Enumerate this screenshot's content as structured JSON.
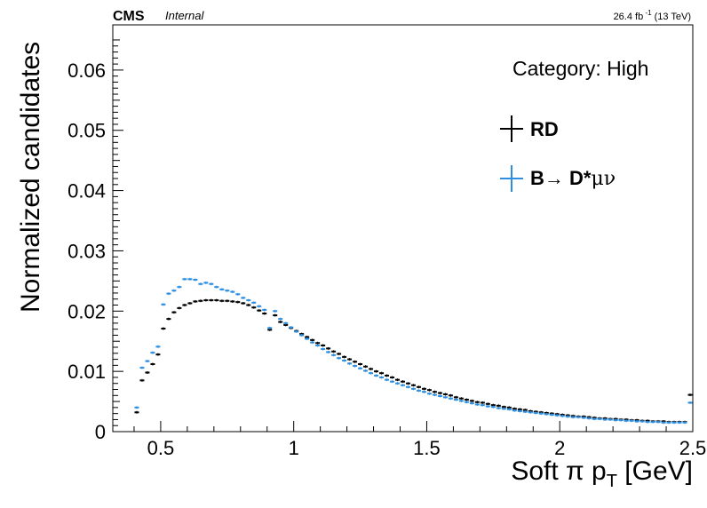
{
  "header": {
    "experiment": "CMS",
    "status": "Internal",
    "lumi": "26.4 fb",
    "lumi_exp": "-1",
    "energy": "(13 TeV)"
  },
  "chart_data": {
    "type": "scatter",
    "xlabel_main": "Soft π p",
    "xlabel_sub": "T",
    "xlabel_unit": "[GeV]",
    "ylabel": "Normalized candidates",
    "xlim": [
      0.32,
      2.5
    ],
    "ylim": [
      0,
      0.0675
    ],
    "x_ticks": [
      "0.5",
      "1",
      "1.5",
      "2",
      "2.5"
    ],
    "y_ticks": [
      "0",
      "0.01",
      "0.02",
      "0.03",
      "0.04",
      "0.05",
      "0.06"
    ],
    "annotation": "Category: High",
    "legend_position": "top-right",
    "bin_width": 0.02,
    "series": [
      {
        "name": "RD",
        "legend_label": "RD",
        "color": "#000000",
        "bins": [
          [
            0.41,
            0.0032
          ],
          [
            0.43,
            0.0085
          ],
          [
            0.45,
            0.0098
          ],
          [
            0.47,
            0.0112
          ],
          [
            0.49,
            0.0128
          ],
          [
            0.51,
            0.0171
          ],
          [
            0.53,
            0.0187
          ],
          [
            0.55,
            0.0198
          ],
          [
            0.57,
            0.0205
          ],
          [
            0.59,
            0.021
          ],
          [
            0.61,
            0.0213
          ],
          [
            0.63,
            0.0216
          ],
          [
            0.65,
            0.0217
          ],
          [
            0.67,
            0.0218
          ],
          [
            0.69,
            0.0218
          ],
          [
            0.71,
            0.0218
          ],
          [
            0.73,
            0.0217
          ],
          [
            0.75,
            0.0217
          ],
          [
            0.77,
            0.0216
          ],
          [
            0.79,
            0.0215
          ],
          [
            0.81,
            0.0213
          ],
          [
            0.83,
            0.021
          ],
          [
            0.85,
            0.0206
          ],
          [
            0.87,
            0.0201
          ],
          [
            0.89,
            0.0196
          ],
          [
            0.91,
            0.0169
          ],
          [
            0.93,
            0.0193
          ],
          [
            0.95,
            0.0182
          ],
          [
            0.97,
            0.0177
          ],
          [
            0.99,
            0.0172
          ],
          [
            1.01,
            0.0167
          ],
          [
            1.03,
            0.0162
          ],
          [
            1.05,
            0.0157
          ],
          [
            1.07,
            0.0152
          ],
          [
            1.09,
            0.0147
          ],
          [
            1.11,
            0.0143
          ],
          [
            1.13,
            0.0138
          ],
          [
            1.15,
            0.0133
          ],
          [
            1.17,
            0.0129
          ],
          [
            1.19,
            0.0124
          ],
          [
            1.21,
            0.012
          ],
          [
            1.23,
            0.0116
          ],
          [
            1.25,
            0.0112
          ],
          [
            1.27,
            0.0108
          ],
          [
            1.29,
            0.0104
          ],
          [
            1.31,
            0.01
          ],
          [
            1.33,
            0.0097
          ],
          [
            1.35,
            0.0093
          ],
          [
            1.37,
            0.009
          ],
          [
            1.39,
            0.0086
          ],
          [
            1.41,
            0.0083
          ],
          [
            1.43,
            0.008
          ],
          [
            1.45,
            0.0077
          ],
          [
            1.47,
            0.0074
          ],
          [
            1.49,
            0.0071
          ],
          [
            1.51,
            0.0069
          ],
          [
            1.53,
            0.0066
          ],
          [
            1.55,
            0.0064
          ],
          [
            1.57,
            0.0062
          ],
          [
            1.59,
            0.006
          ],
          [
            1.61,
            0.0057
          ],
          [
            1.63,
            0.0055
          ],
          [
            1.65,
            0.0053
          ],
          [
            1.67,
            0.0051
          ],
          [
            1.69,
            0.0049
          ],
          [
            1.71,
            0.0048
          ],
          [
            1.73,
            0.0046
          ],
          [
            1.75,
            0.0044
          ],
          [
            1.77,
            0.0043
          ],
          [
            1.79,
            0.0041
          ],
          [
            1.81,
            0.004
          ],
          [
            1.83,
            0.0038
          ],
          [
            1.85,
            0.0037
          ],
          [
            1.87,
            0.0036
          ],
          [
            1.89,
            0.0034
          ],
          [
            1.91,
            0.0033
          ],
          [
            1.93,
            0.0032
          ],
          [
            1.95,
            0.0031
          ],
          [
            1.97,
            0.003
          ],
          [
            1.99,
            0.0029
          ],
          [
            2.01,
            0.0028
          ],
          [
            2.03,
            0.0027
          ],
          [
            2.05,
            0.0026
          ],
          [
            2.07,
            0.0025
          ],
          [
            2.09,
            0.0025
          ],
          [
            2.11,
            0.0024
          ],
          [
            2.13,
            0.0023
          ],
          [
            2.15,
            0.0022
          ],
          [
            2.17,
            0.0022
          ],
          [
            2.19,
            0.0021
          ],
          [
            2.21,
            0.0021
          ],
          [
            2.23,
            0.002
          ],
          [
            2.25,
            0.002
          ],
          [
            2.27,
            0.0019
          ],
          [
            2.29,
            0.0019
          ],
          [
            2.31,
            0.0018
          ],
          [
            2.33,
            0.0018
          ],
          [
            2.35,
            0.0017
          ],
          [
            2.37,
            0.0017
          ],
          [
            2.39,
            0.0017
          ],
          [
            2.41,
            0.0016
          ],
          [
            2.43,
            0.0016
          ],
          [
            2.45,
            0.0016
          ],
          [
            2.47,
            0.0016
          ],
          [
            2.49,
            0.0061
          ]
        ]
      },
      {
        "name": "B→ D*μν",
        "legend_label_bold": "B→ D*",
        "legend_label_greek": "μν",
        "color": "#2e8fe0",
        "bins": [
          [
            0.41,
            0.004
          ],
          [
            0.43,
            0.0106
          ],
          [
            0.45,
            0.0117
          ],
          [
            0.47,
            0.0131
          ],
          [
            0.49,
            0.0141
          ],
          [
            0.51,
            0.0211
          ],
          [
            0.53,
            0.0229
          ],
          [
            0.55,
            0.0234
          ],
          [
            0.57,
            0.024
          ],
          [
            0.59,
            0.0253
          ],
          [
            0.61,
            0.0253
          ],
          [
            0.63,
            0.0252
          ],
          [
            0.65,
            0.0245
          ],
          [
            0.67,
            0.0247
          ],
          [
            0.69,
            0.0245
          ],
          [
            0.71,
            0.024
          ],
          [
            0.73,
            0.0236
          ],
          [
            0.75,
            0.0234
          ],
          [
            0.77,
            0.0232
          ],
          [
            0.79,
            0.0228
          ],
          [
            0.81,
            0.0222
          ],
          [
            0.83,
            0.0218
          ],
          [
            0.85,
            0.0214
          ],
          [
            0.87,
            0.0208
          ],
          [
            0.89,
            0.0202
          ],
          [
            0.91,
            0.0172
          ],
          [
            0.93,
            0.02
          ],
          [
            0.95,
            0.0187
          ],
          [
            0.97,
            0.018
          ],
          [
            0.99,
            0.0173
          ],
          [
            1.01,
            0.0166
          ],
          [
            1.03,
            0.016
          ],
          [
            1.05,
            0.0154
          ],
          [
            1.07,
            0.0148
          ],
          [
            1.09,
            0.0143
          ],
          [
            1.11,
            0.0137
          ],
          [
            1.13,
            0.0132
          ],
          [
            1.15,
            0.0127
          ],
          [
            1.17,
            0.0122
          ],
          [
            1.19,
            0.0118
          ],
          [
            1.21,
            0.0113
          ],
          [
            1.23,
            0.0109
          ],
          [
            1.25,
            0.0105
          ],
          [
            1.27,
            0.0101
          ],
          [
            1.29,
            0.0097
          ],
          [
            1.31,
            0.0093
          ],
          [
            1.33,
            0.009
          ],
          [
            1.35,
            0.0086
          ],
          [
            1.37,
            0.0083
          ],
          [
            1.39,
            0.008
          ],
          [
            1.41,
            0.0077
          ],
          [
            1.43,
            0.0074
          ],
          [
            1.45,
            0.0071
          ],
          [
            1.47,
            0.0068
          ],
          [
            1.49,
            0.0066
          ],
          [
            1.51,
            0.0063
          ],
          [
            1.53,
            0.0061
          ],
          [
            1.55,
            0.0059
          ],
          [
            1.57,
            0.0057
          ],
          [
            1.59,
            0.0055
          ],
          [
            1.61,
            0.0053
          ],
          [
            1.63,
            0.0051
          ],
          [
            1.65,
            0.0049
          ],
          [
            1.67,
            0.0047
          ],
          [
            1.69,
            0.0045
          ],
          [
            1.71,
            0.0044
          ],
          [
            1.73,
            0.0042
          ],
          [
            1.75,
            0.0041
          ],
          [
            1.77,
            0.0039
          ],
          [
            1.79,
            0.0038
          ],
          [
            1.81,
            0.0037
          ],
          [
            1.83,
            0.0035
          ],
          [
            1.85,
            0.0034
          ],
          [
            1.87,
            0.0033
          ],
          [
            1.89,
            0.0032
          ],
          [
            1.91,
            0.0031
          ],
          [
            1.93,
            0.003
          ],
          [
            1.95,
            0.0029
          ],
          [
            1.97,
            0.0028
          ],
          [
            1.99,
            0.0027
          ],
          [
            2.01,
            0.0026
          ],
          [
            2.03,
            0.0025
          ],
          [
            2.05,
            0.0024
          ],
          [
            2.07,
            0.0024
          ],
          [
            2.09,
            0.0023
          ],
          [
            2.11,
            0.0022
          ],
          [
            2.13,
            0.0021
          ],
          [
            2.15,
            0.0021
          ],
          [
            2.17,
            0.002
          ],
          [
            2.19,
            0.002
          ],
          [
            2.21,
            0.0019
          ],
          [
            2.23,
            0.0019
          ],
          [
            2.25,
            0.0018
          ],
          [
            2.27,
            0.0018
          ],
          [
            2.29,
            0.0017
          ],
          [
            2.31,
            0.0017
          ],
          [
            2.33,
            0.0016
          ],
          [
            2.35,
            0.0016
          ],
          [
            2.37,
            0.0016
          ],
          [
            2.39,
            0.0015
          ],
          [
            2.41,
            0.0015
          ],
          [
            2.43,
            0.0015
          ],
          [
            2.45,
            0.0015
          ],
          [
            2.47,
            0.0015
          ],
          [
            2.49,
            0.0048
          ]
        ]
      }
    ]
  }
}
